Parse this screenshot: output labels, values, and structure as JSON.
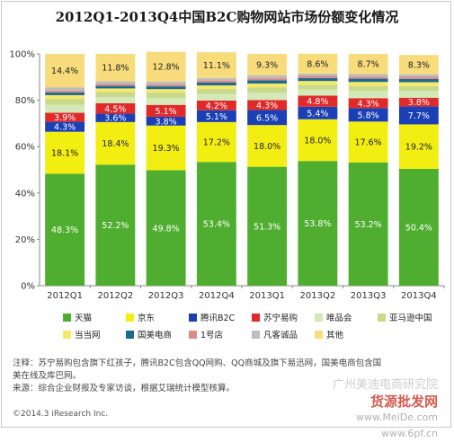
{
  "title": "2012Q1-2013Q4中国B2C购物网站市场份额变化情况",
  "chart_data": {
    "type": "bar",
    "stacked": "percent",
    "categories": [
      "2012Q1",
      "2012Q2",
      "2012Q3",
      "2012Q4",
      "2013Q1",
      "2013Q2",
      "2013Q3",
      "2013Q4"
    ],
    "ylim": [
      0,
      100
    ],
    "yticks": [
      "0%",
      "20%",
      "40%",
      "60%",
      "80%",
      "100%"
    ],
    "grid": false,
    "legend_position": "bottom",
    "series": [
      {
        "name": "天猫",
        "color": "#4fae2f",
        "values": [
          48.3,
          52.2,
          49.8,
          53.4,
          51.3,
          53.8,
          53.2,
          50.4
        ],
        "labels": [
          "48.3%",
          "52.2%",
          "49.8%",
          "53.4%",
          "51.3%",
          "53.8%",
          "53.2%",
          "50.4%"
        ],
        "label_color": "#ffffff"
      },
      {
        "name": "京东",
        "color": "#f2ee12",
        "values": [
          18.1,
          18.4,
          19.3,
          17.2,
          18.0,
          18.0,
          17.6,
          19.2
        ],
        "labels": [
          "18.1%",
          "18.4%",
          "19.3%",
          "17.2%",
          "18.0%",
          "18.0%",
          "17.6%",
          "19.2%"
        ],
        "label_color": "#222222"
      },
      {
        "name": "腾讯B2C",
        "color": "#1b3fb5",
        "values": [
          4.3,
          3.6,
          3.8,
          5.1,
          6.5,
          5.4,
          5.8,
          7.7
        ],
        "labels": [
          "4.3%",
          "3.6%",
          "3.8%",
          "5.1%",
          "6.5%",
          "5.4%",
          "5.8%",
          "7.7%"
        ],
        "label_color": "#ffffff"
      },
      {
        "name": "苏宁易购",
        "color": "#e02a2a",
        "values": [
          3.9,
          4.5,
          5.1,
          4.2,
          4.3,
          4.8,
          4.3,
          3.8
        ],
        "labels": [
          "3.9%",
          "4.5%",
          "5.1%",
          "4.2%",
          "4.3%",
          "4.8%",
          "4.3%",
          "3.8%"
        ],
        "label_color": "#ffffff"
      },
      {
        "name": "唯品会",
        "color": "#d4e8b8",
        "values": [
          3.5,
          2.6,
          3.0,
          2.8,
          3.2,
          2.7,
          3.1,
          3.0
        ],
        "labels": [
          "",
          "",
          "",
          "",
          "",
          "",
          "",
          ""
        ],
        "label_color": "#222222"
      },
      {
        "name": "亚马逊中国",
        "color": "#c9d98a",
        "values": [
          2.5,
          2.3,
          2.4,
          2.2,
          2.3,
          2.0,
          2.2,
          2.0
        ],
        "labels": [
          "",
          "",
          "",
          "",
          "",
          "",
          "",
          ""
        ],
        "label_color": "#222222"
      },
      {
        "name": "当当网",
        "color": "#f5e96a",
        "values": [
          1.6,
          1.5,
          1.4,
          1.5,
          1.6,
          1.6,
          1.7,
          1.7
        ],
        "labels": [
          "",
          "",
          "",
          "",
          "",
          "",
          "",
          ""
        ],
        "label_color": "#222222"
      },
      {
        "name": "国美电商",
        "color": "#1f6b8c",
        "values": [
          1.2,
          1.1,
          1.2,
          1.2,
          1.4,
          1.3,
          1.4,
          1.4
        ],
        "labels": [
          "",
          "",
          "",
          "",
          "",
          "",
          "",
          ""
        ],
        "label_color": "#222222"
      },
      {
        "name": "1号店",
        "color": "#d98a8a",
        "values": [
          0.8,
          0.8,
          0.8,
          0.9,
          0.9,
          0.9,
          0.9,
          1.0
        ],
        "labels": [
          "",
          "",
          "",
          "",
          "",
          "",
          "",
          ""
        ],
        "label_color": "#222222"
      },
      {
        "name": "凡客诚品",
        "color": "#bdbdbd",
        "values": [
          1.4,
          1.2,
          1.3,
          1.1,
          1.2,
          1.0,
          1.1,
          1.0
        ],
        "labels": [
          "",
          "",
          "",
          "",
          "",
          "",
          "",
          ""
        ],
        "label_color": "#222222"
      },
      {
        "name": "其他",
        "color": "#f8dc7c",
        "values": [
          14.4,
          11.8,
          12.8,
          11.1,
          9.3,
          8.6,
          8.7,
          8.3
        ],
        "labels": [
          "14.4%",
          "11.8%",
          "12.8%",
          "11.1%",
          "9.3%",
          "8.6%",
          "8.7%",
          "8.3%"
        ],
        "label_color": "#222222"
      }
    ]
  },
  "notes": [
    "注释：苏宁易购包含旗下红孩子，腾讯B2C包含QQ网购、QQ商城及旗下易迅网，国美电商包含国",
    "美在线及库巴网。",
    "来源：综合企业财报及专家访谈，根据艾瑞统计模型核算。"
  ],
  "copyright": "©2014.3 iResearch Inc.",
  "watermark": {
    "line1": "广州美迪电商研究院",
    "line2": "货源批发网",
    "line3": "www.MeiDe.com",
    "line4": "www.6pf.cn"
  }
}
